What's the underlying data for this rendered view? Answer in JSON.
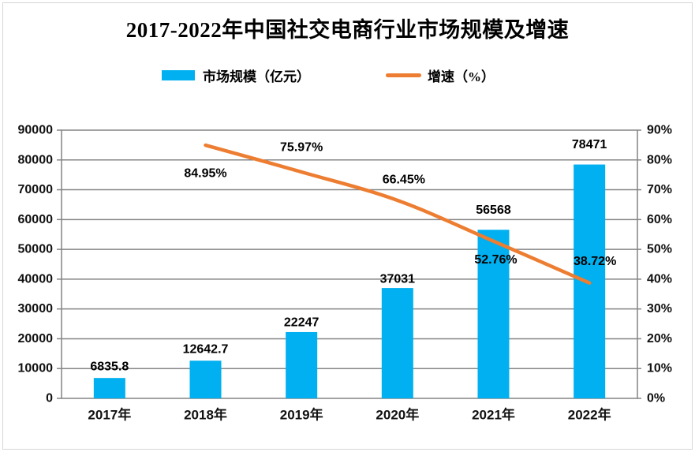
{
  "page": {
    "title": "2017-2022年中国社交电商行业市场规模及增速"
  },
  "legend": [
    {
      "label": "市场规模（亿元）",
      "type": "bar",
      "color": "#00B0F0"
    },
    {
      "label": "增速（%）",
      "type": "line",
      "color": "#ED7D31"
    }
  ],
  "chart_data": {
    "type": "bar+line",
    "title": "2017-2022年中国社交电商行业市场规模及增速",
    "categories": [
      "2017年",
      "2018年",
      "2019年",
      "2020年",
      "2021年",
      "2022年"
    ],
    "series": [
      {
        "name": "市场规模（亿元）",
        "type": "bar",
        "axis": "left",
        "color": "#00B0F0",
        "values": [
          6835.8,
          12642.7,
          22247,
          37031,
          56568,
          78471
        ],
        "labels": [
          "6835.8",
          "12642.7",
          "22247",
          "37031",
          "56568",
          "78471"
        ]
      },
      {
        "name": "增速（%）",
        "type": "line",
        "axis": "right",
        "color": "#ED7D31",
        "start_category_index": 1,
        "values": [
          84.95,
          75.97,
          66.45,
          52.76,
          38.72
        ],
        "labels": [
          "84.95%",
          "75.97%",
          "66.45%",
          "52.76%",
          "38.72%"
        ]
      }
    ],
    "left_axis": {
      "min": 0,
      "max": 90000,
      "step": 10000,
      "tick_labels": [
        "0",
        "10000",
        "20000",
        "30000",
        "40000",
        "50000",
        "60000",
        "70000",
        "80000",
        "90000"
      ]
    },
    "right_axis": {
      "min": 0,
      "max": 90,
      "step": 10,
      "tick_labels": [
        "0%",
        "10%",
        "20%",
        "30%",
        "40%",
        "50%",
        "60%",
        "70%",
        "80%",
        "90%"
      ]
    },
    "grid": true,
    "legend_position": "top",
    "grid_color": "#848484"
  }
}
